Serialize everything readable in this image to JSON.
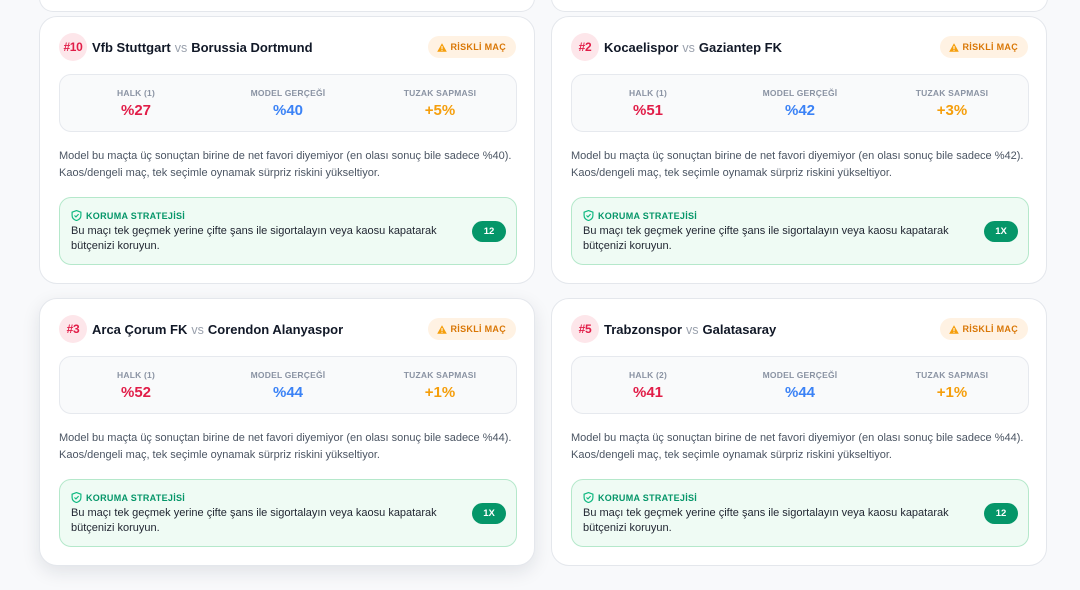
{
  "labels": {
    "vs": "vs",
    "risk_badge": "RİSKLİ MAÇ",
    "model_label": "MODEL GERÇEĞİ",
    "trap_label": "TUZAK SAPMASI",
    "protect_title": "KORUMA STRATEJİSİ"
  },
  "icons": {
    "risk": "warning-icon",
    "protect": "shield-icon"
  },
  "colors": {
    "rank": "#e11d48",
    "public": "#e11d48",
    "model": "#3b82f6",
    "trap": "#f59e0b",
    "risk": "#d97706",
    "protect": "#059669"
  },
  "cards": [
    {
      "rank": "#10",
      "home": "Vfb Stuttgart",
      "away": "Borussia Dortmund",
      "public_label": "HALK (1)",
      "public_value": "%27",
      "model_value": "%40",
      "trap_value": "+5%",
      "description": "Model bu maçta üç sonuçtan birine de net favori diyemiyor (en olası sonuç bile sadece %40). Kaos/dengeli maç, tek seçimle oynamak sürpriz riskini yükseltiyor.",
      "protect_text": "Bu maçı tek geçmek yerine çifte şans ile sigortalayın veya kaosu kapatarak bütçenizi koruyun.",
      "pick": "12"
    },
    {
      "rank": "#2",
      "home": "Kocaelispor",
      "away": "Gaziantep FK",
      "public_label": "HALK (1)",
      "public_value": "%51",
      "model_value": "%42",
      "trap_value": "+3%",
      "description": "Model bu maçta üç sonuçtan birine de net favori diyemiyor (en olası sonuç bile sadece %42). Kaos/dengeli maç, tek seçimle oynamak sürpriz riskini yükseltiyor.",
      "protect_text": "Bu maçı tek geçmek yerine çifte şans ile sigortalayın veya kaosu kapatarak bütçenizi koruyun.",
      "pick": "1X"
    },
    {
      "rank": "#3",
      "home": "Arca Çorum FK",
      "away": "Corendon Alanyaspor",
      "public_label": "HALK (1)",
      "public_value": "%52",
      "model_value": "%44",
      "trap_value": "+1%",
      "description": "Model bu maçta üç sonuçtan birine de net favori diyemiyor (en olası sonuç bile sadece %44). Kaos/dengeli maç, tek seçimle oynamak sürpriz riskini yükseltiyor.",
      "protect_text": "Bu maçı tek geçmek yerine çifte şans ile sigortalayın veya kaosu kapatarak bütçenizi koruyun.",
      "pick": "1X"
    },
    {
      "rank": "#5",
      "home": "Trabzonspor",
      "away": "Galatasaray",
      "public_label": "HALK (2)",
      "public_value": "%41",
      "model_value": "%44",
      "trap_value": "+1%",
      "description": "Model bu maçta üç sonuçtan birine de net favori diyemiyor (en olası sonuç bile sadece %44). Kaos/dengeli maç, tek seçimle oynamak sürpriz riskini yükseltiyor.",
      "protect_text": "Bu maçı tek geçmek yerine çifte şans ile sigortalayın veya kaosu kapatarak bütçenizi koruyun.",
      "pick": "12"
    }
  ]
}
